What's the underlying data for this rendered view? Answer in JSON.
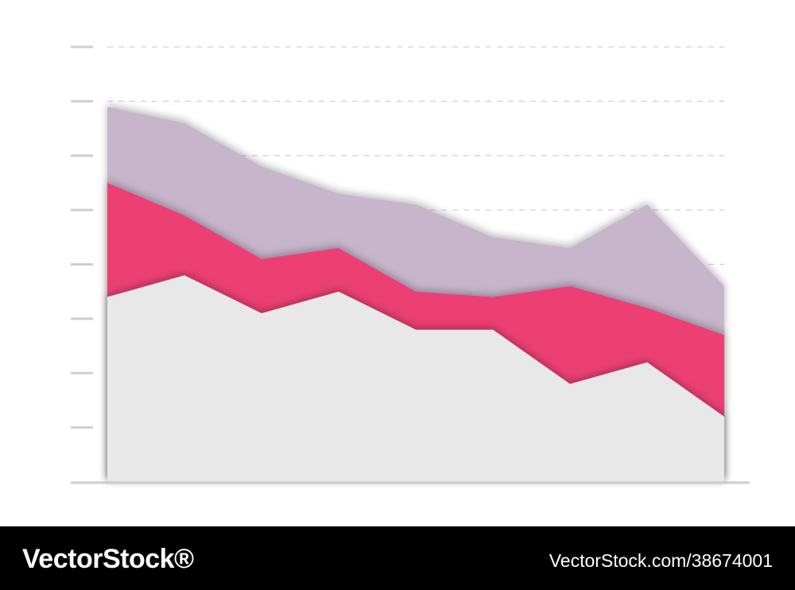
{
  "chart_data": {
    "type": "area",
    "stacked": true,
    "x": [
      1,
      2,
      3,
      4,
      5,
      6,
      7,
      8,
      9
    ],
    "series": [
      {
        "color": "#e8e8e8",
        "values": [
          3.4,
          3.8,
          3.1,
          3.5,
          2.8,
          2.8,
          1.8,
          2.2,
          1.2
        ]
      },
      {
        "color": "#ec3f75",
        "values": [
          2.1,
          1.1,
          1.0,
          0.8,
          0.7,
          0.6,
          1.8,
          1.0,
          1.5
        ]
      },
      {
        "color": "#c7b5cc",
        "values": [
          1.4,
          1.7,
          1.7,
          1.0,
          1.6,
          1.1,
          0.7,
          1.9,
          0.9
        ]
      }
    ],
    "ylim": [
      0,
      8
    ],
    "y_ticks": [
      0,
      1,
      2,
      3,
      4,
      5,
      6,
      7,
      8
    ],
    "grid": true,
    "grid_style": "dashed",
    "tick_labels_shown": false,
    "legend": "none"
  },
  "footer": {
    "brand": "VectorStock®",
    "image_id": "VectorStock.com/38674001",
    "background": "#000000",
    "text_color": "#ffffff"
  }
}
